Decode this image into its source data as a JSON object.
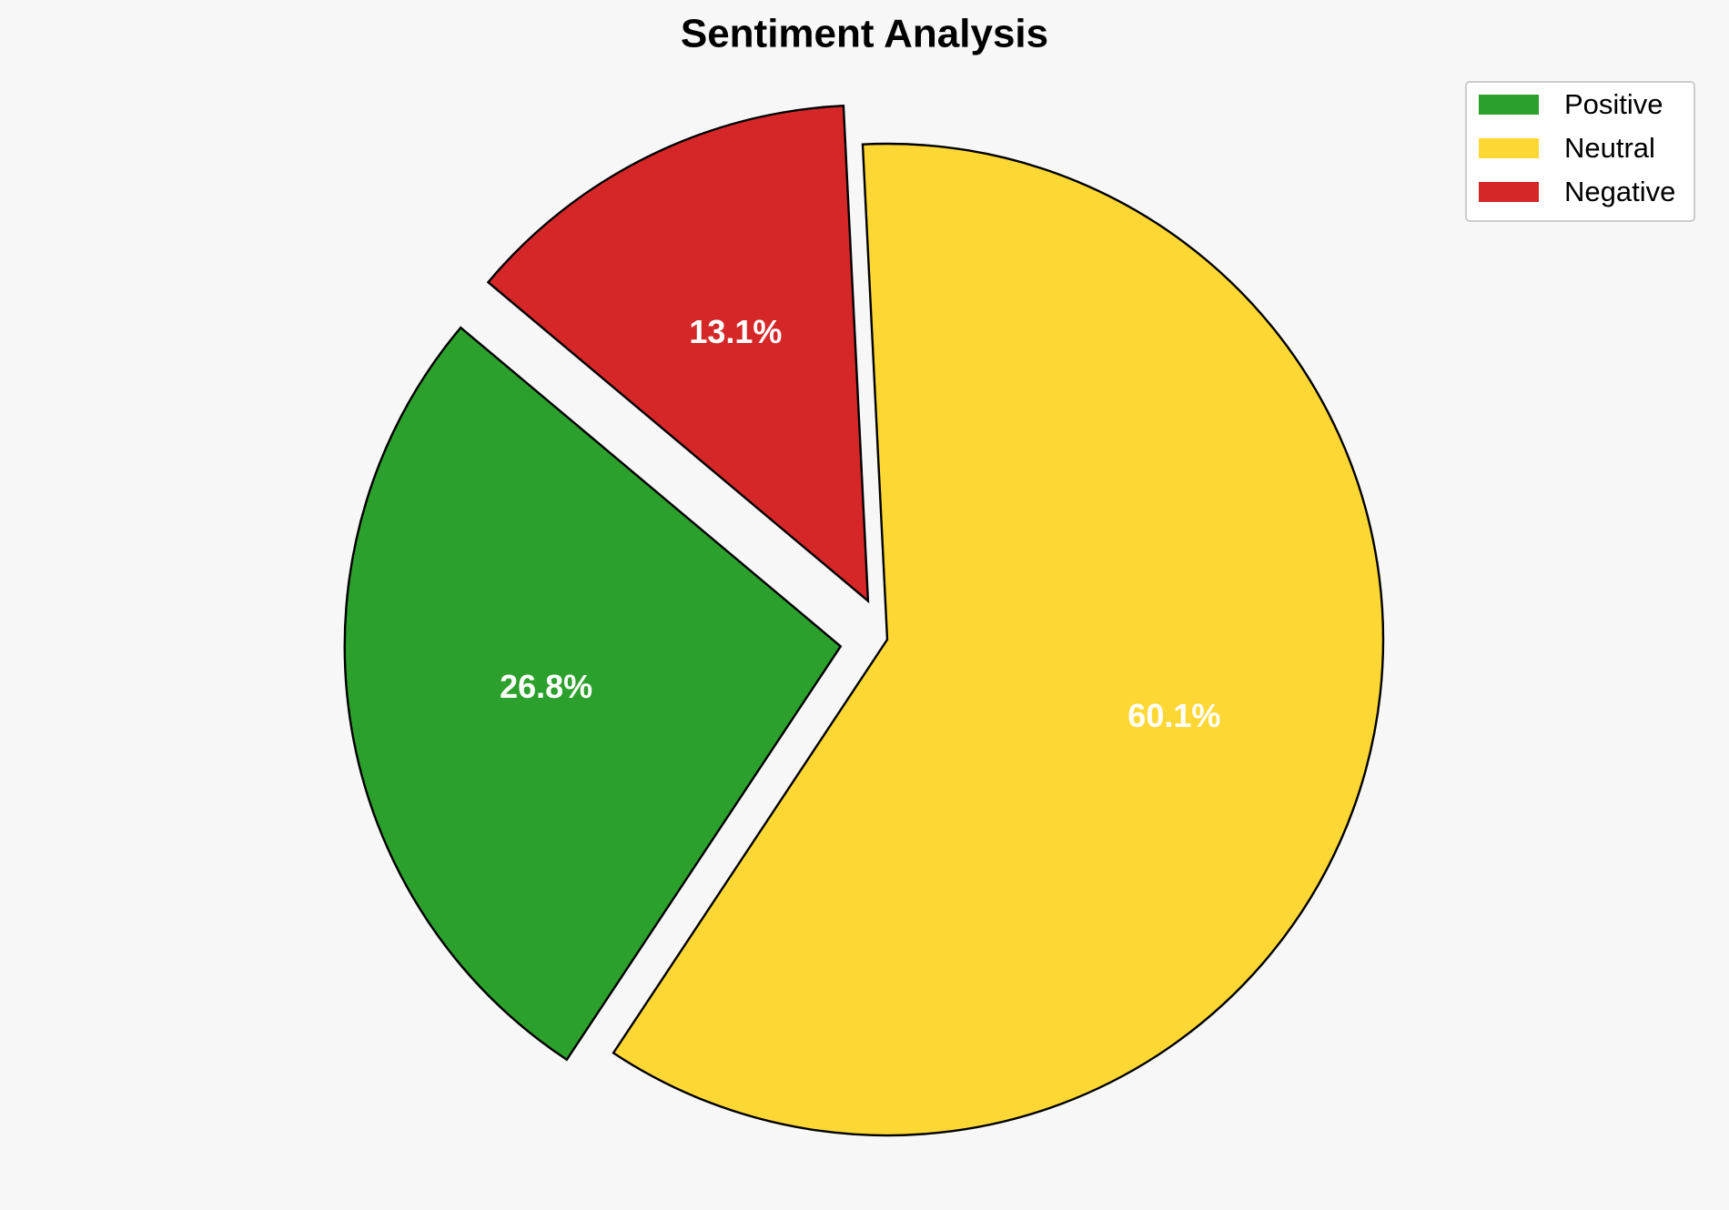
{
  "chart_data": {
    "type": "pie",
    "title": "Sentiment Analysis",
    "categories": [
      "Positive",
      "Neutral",
      "Negative"
    ],
    "values": [
      26.8,
      60.1,
      13.1
    ],
    "value_labels": [
      "26.8%",
      "60.1%",
      "13.1%"
    ],
    "colors": [
      "#2ca02c",
      "#fdd835",
      "#d62728"
    ],
    "legend": "upper right"
  }
}
